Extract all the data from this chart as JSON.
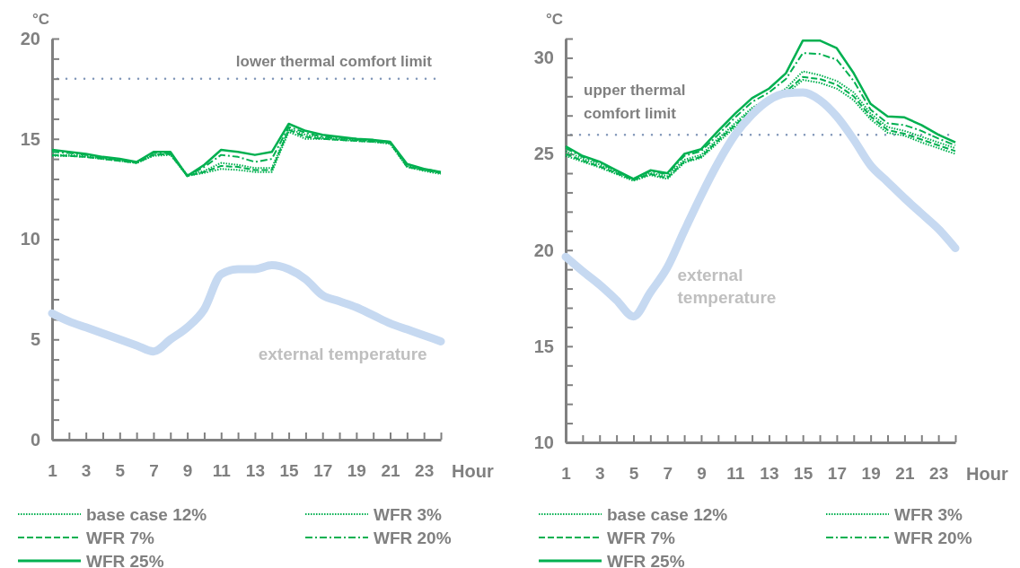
{
  "chart_data": [
    {
      "type": "line",
      "ylabel": "°C",
      "xlabel": "Hour",
      "x": [
        1,
        2,
        3,
        4,
        5,
        6,
        7,
        8,
        9,
        10,
        11,
        12,
        13,
        14,
        15,
        16,
        17,
        18,
        19,
        20,
        21,
        22,
        23,
        24
      ],
      "xlim": [
        1,
        24
      ],
      "xticks": [
        1,
        {
          "value": 2,
          "label": null
        },
        3,
        {
          "value": 4,
          "label": null
        },
        5,
        {
          "value": 6,
          "label": null
        },
        7,
        {
          "value": 8,
          "label": null
        },
        9,
        {
          "value": 10,
          "label": null
        },
        11,
        {
          "value": 12,
          "label": null
        },
        13,
        {
          "value": 14,
          "label": null
        },
        15,
        {
          "value": 16,
          "label": null
        },
        17,
        {
          "value": 18,
          "label": null
        },
        19,
        {
          "value": 20,
          "label": null
        },
        21,
        {
          "value": 22,
          "label": null
        },
        23,
        {
          "value": 24,
          "label": null
        }
      ],
      "ylim": [
        0,
        20
      ],
      "yticks": [
        0,
        {
          "value": 1,
          "label": null
        },
        {
          "value": 2,
          "label": null
        },
        {
          "value": 3,
          "label": null
        },
        {
          "value": 4,
          "label": null
        },
        5,
        {
          "value": 6,
          "label": null
        },
        {
          "value": 7,
          "label": null
        },
        {
          "value": 8,
          "label": null
        },
        {
          "value": 9,
          "label": null
        },
        10,
        {
          "value": 11,
          "label": null
        },
        {
          "value": 12,
          "label": null
        },
        {
          "value": 13,
          "label": null
        },
        {
          "value": 14,
          "label": null
        },
        15,
        {
          "value": 16,
          "label": null
        },
        {
          "value": 17,
          "label": null
        },
        {
          "value": 18,
          "label": null
        },
        {
          "value": 19,
          "label": null
        },
        20
      ],
      "legend": "bottom",
      "grid": false,
      "marker": "none",
      "ref_lines": [
        {
          "axis": "y",
          "value": 18,
          "label": "lower thermal comfort limit",
          "color": "#8096b8",
          "line_style": "dotted"
        }
      ],
      "series": [
        {
          "name": "base case 12%",
          "color": "#00b050",
          "line_style": "dotted",
          "values": [
            14.2,
            14.2,
            14.15,
            14.05,
            13.95,
            13.8,
            14.2,
            14.25,
            13.2,
            13.4,
            13.8,
            13.7,
            13.55,
            13.55,
            15.5,
            15.2,
            15.05,
            15.0,
            14.95,
            14.9,
            14.8,
            13.65,
            13.45,
            13.3
          ]
        },
        {
          "name": "WFR 3%",
          "color": "#00b050",
          "line_style": "dotted",
          "values": [
            14.15,
            14.15,
            14.1,
            14.0,
            13.9,
            13.8,
            14.15,
            14.2,
            13.15,
            13.3,
            13.5,
            13.45,
            13.35,
            13.35,
            15.35,
            15.0,
            15.0,
            14.95,
            14.9,
            14.85,
            14.75,
            13.6,
            13.4,
            13.25
          ]
        },
        {
          "name": "WFR 7%",
          "color": "#00b050",
          "line_style": "dashed",
          "values": [
            14.2,
            14.15,
            14.1,
            14.0,
            13.9,
            13.8,
            14.2,
            14.25,
            13.15,
            13.35,
            13.65,
            13.6,
            13.45,
            13.45,
            15.45,
            15.1,
            15.0,
            14.95,
            14.9,
            14.85,
            14.8,
            13.6,
            13.45,
            13.3
          ]
        },
        {
          "name": "WFR 20%",
          "color": "#00b050",
          "line_style": "dashdot",
          "values": [
            14.35,
            14.3,
            14.2,
            14.05,
            13.95,
            13.85,
            14.3,
            14.3,
            13.15,
            13.6,
            14.2,
            14.1,
            13.85,
            14.0,
            15.6,
            15.3,
            15.1,
            15.05,
            15.0,
            14.9,
            14.85,
            13.7,
            13.5,
            13.35
          ]
        },
        {
          "name": "WFR 25%",
          "color": "#00b050",
          "line_style": "solid",
          "values": [
            14.45,
            14.35,
            14.25,
            14.1,
            14.0,
            13.85,
            14.35,
            14.35,
            13.15,
            13.7,
            14.45,
            14.35,
            14.2,
            14.35,
            15.75,
            15.4,
            15.2,
            15.1,
            15.0,
            14.95,
            14.85,
            13.75,
            13.5,
            13.35
          ]
        },
        {
          "name": "external temperature",
          "color": "#c6d9f1",
          "line_style": "solid",
          "values": [
            6.3,
            5.9,
            5.6,
            5.3,
            5.0,
            4.7,
            4.4,
            5.0,
            5.6,
            6.5,
            8.25,
            8.5,
            8.5,
            8.7,
            8.5,
            8.0,
            7.2,
            6.9,
            6.6,
            6.2,
            5.8,
            5.5,
            5.2,
            4.9
          ]
        }
      ]
    },
    {
      "type": "line",
      "ylabel": "°C",
      "xlabel": "Hour",
      "x": [
        1,
        2,
        3,
        4,
        5,
        6,
        7,
        8,
        9,
        10,
        11,
        12,
        13,
        14,
        15,
        16,
        17,
        18,
        19,
        20,
        21,
        22,
        23,
        24
      ],
      "xlim": [
        1,
        24
      ],
      "xticks": [
        1,
        {
          "value": 2,
          "label": null
        },
        3,
        {
          "value": 4,
          "label": null
        },
        5,
        {
          "value": 6,
          "label": null
        },
        7,
        {
          "value": 8,
          "label": null
        },
        9,
        {
          "value": 10,
          "label": null
        },
        11,
        {
          "value": 12,
          "label": null
        },
        13,
        {
          "value": 14,
          "label": null
        },
        15,
        {
          "value": 16,
          "label": null
        },
        17,
        {
          "value": 18,
          "label": null
        },
        19,
        {
          "value": 20,
          "label": null
        },
        21,
        {
          "value": 22,
          "label": null
        },
        23,
        {
          "value": 24,
          "label": null
        }
      ],
      "ylim": [
        10,
        31
      ],
      "yticks": [
        10,
        {
          "value": 11,
          "label": null
        },
        {
          "value": 12,
          "label": null
        },
        {
          "value": 13,
          "label": null
        },
        {
          "value": 14,
          "label": null
        },
        15,
        {
          "value": 16,
          "label": null
        },
        {
          "value": 17,
          "label": null
        },
        {
          "value": 18,
          "label": null
        },
        {
          "value": 19,
          "label": null
        },
        20,
        {
          "value": 21,
          "label": null
        },
        {
          "value": 22,
          "label": null
        },
        {
          "value": 23,
          "label": null
        },
        {
          "value": 24,
          "label": null
        },
        25,
        {
          "value": 26,
          "label": null
        },
        {
          "value": 27,
          "label": null
        },
        {
          "value": 28,
          "label": null
        },
        {
          "value": 29,
          "label": null
        },
        30,
        {
          "value": 31,
          "label": null
        }
      ],
      "legend": "bottom",
      "grid": false,
      "marker": "none",
      "ref_lines": [
        {
          "axis": "y",
          "value": 26,
          "label": "upper thermal comfort limit",
          "color": "#8096b8",
          "line_style": "dotted"
        }
      ],
      "series": [
        {
          "name": "base case 12%",
          "color": "#00b050",
          "line_style": "dotted",
          "values": [
            25.15,
            24.75,
            24.45,
            24.05,
            23.7,
            24.0,
            23.85,
            24.7,
            24.95,
            25.8,
            26.6,
            27.4,
            27.9,
            28.4,
            29.3,
            29.1,
            28.8,
            28.2,
            27.1,
            26.4,
            26.2,
            25.9,
            25.6,
            25.3
          ]
        },
        {
          "name": "WFR 3%",
          "color": "#00b050",
          "line_style": "dotted",
          "values": [
            24.9,
            24.6,
            24.3,
            23.95,
            23.6,
            23.9,
            23.7,
            24.55,
            24.8,
            25.6,
            26.4,
            27.2,
            27.7,
            28.1,
            28.85,
            28.7,
            28.4,
            27.8,
            26.8,
            26.1,
            25.95,
            25.6,
            25.3,
            25.0
          ]
        },
        {
          "name": "WFR 7%",
          "color": "#00b050",
          "line_style": "dashed",
          "values": [
            25.0,
            24.65,
            24.35,
            24.0,
            23.65,
            23.95,
            23.75,
            24.6,
            24.85,
            25.7,
            26.5,
            27.3,
            27.8,
            28.25,
            29.0,
            28.9,
            28.6,
            28.0,
            26.95,
            26.25,
            26.05,
            25.75,
            25.45,
            25.15
          ]
        },
        {
          "name": "WFR 20%",
          "color": "#00b050",
          "line_style": "dashdot",
          "values": [
            25.3,
            24.85,
            24.55,
            24.1,
            23.7,
            24.1,
            23.95,
            24.9,
            25.15,
            26.0,
            26.9,
            27.7,
            28.2,
            28.9,
            30.25,
            30.2,
            29.9,
            28.8,
            27.3,
            26.6,
            26.5,
            26.2,
            25.8,
            25.45
          ]
        },
        {
          "name": "WFR 25%",
          "color": "#00b050",
          "line_style": "solid",
          "values": [
            25.4,
            24.9,
            24.6,
            24.15,
            23.7,
            24.15,
            24.0,
            25.0,
            25.25,
            26.2,
            27.1,
            27.9,
            28.4,
            29.2,
            30.9,
            30.9,
            30.5,
            29.2,
            27.6,
            26.95,
            26.9,
            26.5,
            26.0,
            25.6
          ]
        },
        {
          "name": "external temperature",
          "color": "#c6d9f1",
          "line_style": "solid",
          "values": [
            19.65,
            18.9,
            18.2,
            17.4,
            16.55,
            17.8,
            19.1,
            21.0,
            22.85,
            24.55,
            26.0,
            27.05,
            27.8,
            28.15,
            28.2,
            27.8,
            26.95,
            25.75,
            24.4,
            23.55,
            22.7,
            21.9,
            21.1,
            20.1
          ]
        }
      ]
    }
  ]
}
